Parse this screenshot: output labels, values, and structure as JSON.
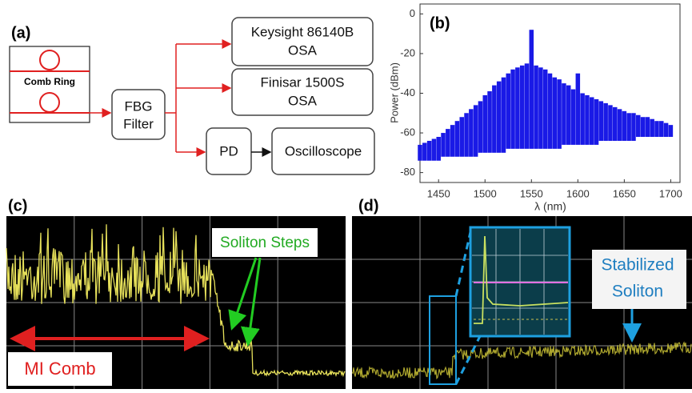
{
  "panel_a": {
    "label": "(a)",
    "comb_ring": "Comb Ring",
    "fbg": [
      "FBG",
      "Filter"
    ],
    "keysight": [
      "Keysight 86140B",
      "OSA"
    ],
    "finisar": [
      "Finisar 1500S",
      "OSA"
    ],
    "pd": "PD",
    "oscilloscope": "Oscilloscope"
  },
  "chart_data": {
    "type": "comb",
    "panel_label": "(b)",
    "xlabel": "λ (nm)",
    "ylabel": "Power (dBm)",
    "x": [
      1430,
      1435,
      1440,
      1445,
      1450,
      1455,
      1460,
      1465,
      1470,
      1475,
      1480,
      1485,
      1490,
      1495,
      1500,
      1505,
      1510,
      1515,
      1520,
      1525,
      1530,
      1535,
      1540,
      1545,
      1550,
      1555,
      1560,
      1565,
      1570,
      1575,
      1580,
      1585,
      1590,
      1595,
      1600,
      1605,
      1610,
      1615,
      1620,
      1625,
      1630,
      1635,
      1640,
      1645,
      1650,
      1655,
      1660,
      1665,
      1670,
      1675,
      1680,
      1685,
      1690,
      1695,
      1700
    ],
    "values": [
      -66,
      -65,
      -64,
      -63,
      -62,
      -60,
      -58,
      -56,
      -54,
      -52,
      -50,
      -48,
      -46,
      -44,
      -41,
      -39,
      -36,
      -34,
      -32,
      -30,
      -28,
      -27,
      -26,
      -25,
      -8,
      -26,
      -27,
      -28,
      -30,
      -32,
      -33,
      -35,
      -36,
      -38,
      -30,
      -40,
      -41,
      -42,
      -43,
      -44,
      -45,
      -46,
      -47,
      -48,
      -49,
      -50,
      -50,
      -51,
      -52,
      -52,
      -53,
      -54,
      -54,
      -55,
      -56
    ],
    "floor": [
      -74,
      -74,
      -74,
      -74,
      -74,
      -72,
      -72,
      -72,
      -72,
      -72,
      -72,
      -72,
      -72,
      -70,
      -70,
      -70,
      -70,
      -70,
      -70,
      -68,
      -68,
      -68,
      -68,
      -68,
      -68,
      -68,
      -68,
      -68,
      -68,
      -68,
      -68,
      -66,
      -66,
      -66,
      -66,
      -66,
      -66,
      -66,
      -66,
      -64,
      -64,
      -64,
      -64,
      -64,
      -64,
      -64,
      -64,
      -62,
      -62,
      -62,
      -62,
      -62,
      -62,
      -62,
      -62
    ],
    "color": "#1a1ae6",
    "xlim": [
      1430,
      1710
    ],
    "ylim": [
      -85,
      5
    ],
    "xticks": [
      1450,
      1500,
      1550,
      1600,
      1650,
      1700
    ],
    "yticks": [
      0,
      -20,
      -40,
      -60,
      -80
    ]
  },
  "panel_c": {
    "label": "(c)",
    "steps": "Soliton Steps",
    "mi": "MI Comb"
  },
  "panel_d": {
    "label": "(d)",
    "stabilized": [
      "Stabilized",
      "Soliton"
    ]
  }
}
